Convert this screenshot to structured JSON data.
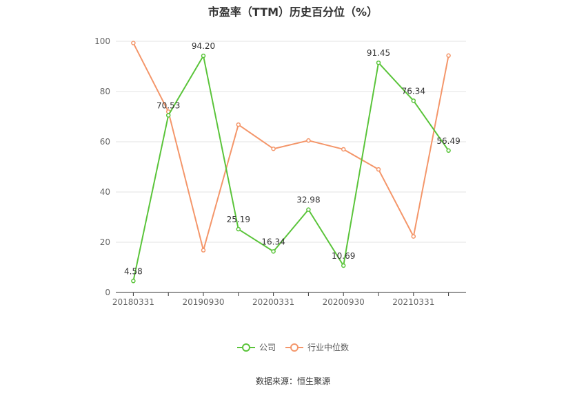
{
  "chart_data": {
    "type": "line",
    "title": "市盈率（TTM）历史百分位（%）",
    "ylim": [
      0,
      100
    ],
    "y_ticks": [
      "0",
      "20",
      "40",
      "60",
      "80",
      "100"
    ],
    "categories": [
      "20180331",
      "",
      "20190930",
      "",
      "20200331",
      "",
      "20200930",
      "",
      "20210331",
      ""
    ],
    "x_tick_labels": [
      "20180331",
      "20190930",
      "20200331",
      "20200930",
      "20210331"
    ],
    "grid": true,
    "legend_position": "bottom",
    "series": [
      {
        "name": "公司",
        "color": "#5ac43a",
        "values": [
          4.58,
          70.53,
          94.2,
          25.19,
          16.34,
          32.98,
          10.69,
          91.45,
          76.34,
          56.49
        ],
        "labels": [
          "4.58",
          "70.53",
          "94.20",
          "25.19",
          "16.34",
          "32.98",
          "10.69",
          "91.45",
          "76.34",
          "56.49"
        ]
      },
      {
        "name": "行业中位数",
        "color": "#f4966a",
        "values": [
          99.3,
          72.0,
          16.8,
          66.8,
          57.2,
          60.5,
          57.0,
          49.0,
          22.3,
          94.3
        ]
      }
    ]
  },
  "source": "数据来源：恒生聚源"
}
